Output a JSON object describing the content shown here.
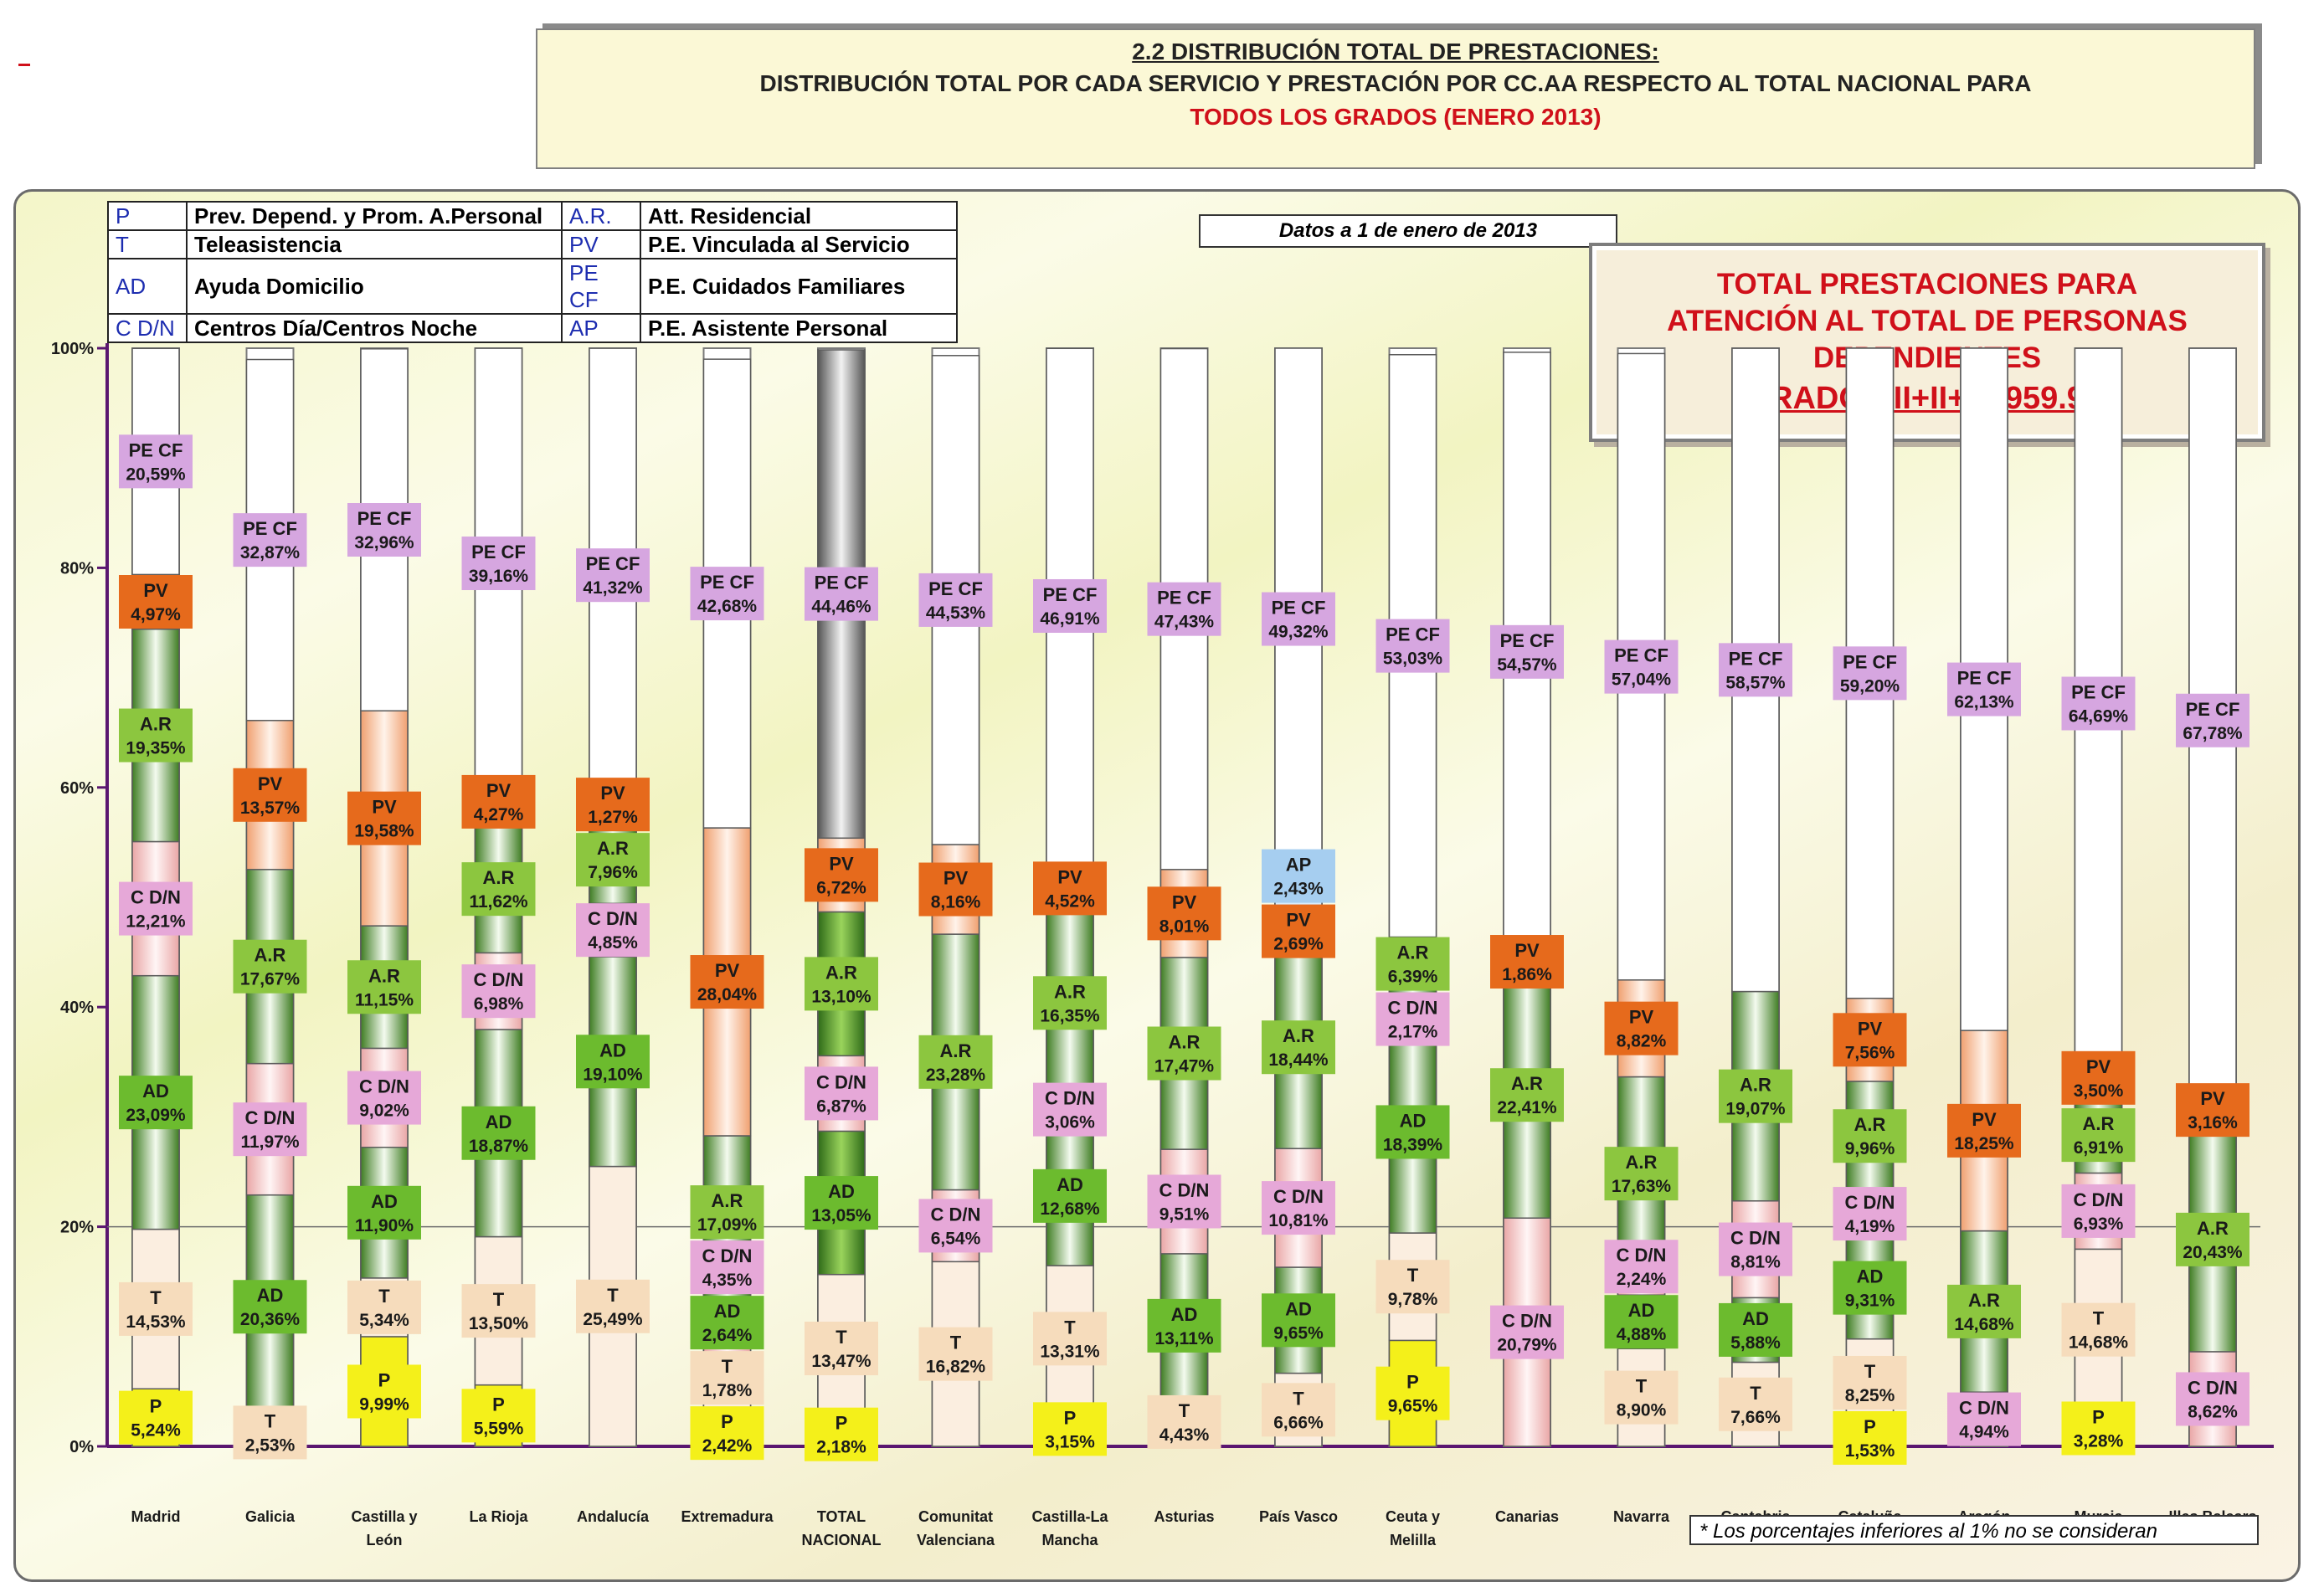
{
  "header": {
    "title": "2.2 DISTRIBUCIÓN TOTAL DE PRESTACIONES:",
    "subtitle": "DISTRIBUCIÓN TOTAL POR CADA SERVICIO Y PRESTACIÓN POR CC.AA RESPECTO AL TOTAL NACIONAL PARA",
    "subtitle2": "TODOS LOS GRADOS (ENERO 2013)"
  },
  "legend": [
    {
      "code": "P",
      "desc": "Prev. Depend. y Prom. A.Personal",
      "code2": "A.R.",
      "desc2": "Att. Residencial"
    },
    {
      "code": "T",
      "desc": "Teleasistencia",
      "code2": "PV",
      "desc2": "P.E. Vinculada al Servicio"
    },
    {
      "code": "AD",
      "desc": "Ayuda Domicilio",
      "code2": "PE CF",
      "desc2": "P.E. Cuidados Familiares"
    },
    {
      "code": "C D/N",
      "desc": "Centros Día/Centros Noche",
      "code2": "AP",
      "desc2": "P.E. Asistente Personal"
    }
  ],
  "datos_note": "Datos a 1 de enero de 2013",
  "total_box": {
    "line1": "TOTAL PRESTACIONES PARA",
    "line2": "ATENCIÓN AL TOTAL DE PERSONAS",
    "line3": "DEPENDIENTES",
    "line4": "(GRADOS II+II+I): 959.903"
  },
  "footnote": "* Los porcentajes inferiores al 1% no se consideran",
  "colors": {
    "P": "#f4f01a",
    "T": "#f6dcbc",
    "AD": "#6cbb2e",
    "C D/N": "#e6a8d8",
    "A.R": "#8cc63f",
    "PV": "#e66a1c",
    "PE CF": "#d6a6e0",
    "AP": "#a6cef0",
    "axis": "#5a1670",
    "label_text": "#1a1a1a"
  },
  "chart_data": {
    "type": "bar",
    "stacked": true,
    "ylim": [
      0,
      100
    ],
    "yticks": [
      "0%",
      "20%",
      "40%",
      "60%",
      "80%",
      "100%"
    ],
    "grid": false,
    "reference_line": 20,
    "categories": [
      {
        "label": [
          "Madrid"
        ],
        "highlight": false,
        "segments": [
          {
            "code": "P",
            "value": 5.24,
            "label": "5,24%"
          },
          {
            "code": "T",
            "value": 14.53,
            "label": "14,53%"
          },
          {
            "code": "AD",
            "value": 23.09,
            "label": "23,09%"
          },
          {
            "code": "C D/N",
            "value": 12.21,
            "label": "12,21%"
          },
          {
            "code": "A.R",
            "value": 19.35,
            "label": "19,35%"
          },
          {
            "code": "PV",
            "value": 4.97,
            "label": "4,97%"
          },
          {
            "code": "PE CF",
            "value": 20.59,
            "label": "20,59%"
          }
        ]
      },
      {
        "label": [
          "Galicia"
        ],
        "highlight": false,
        "segments": [
          {
            "code": "T",
            "value": 2.53,
            "label": "2,53%"
          },
          {
            "code": "AD",
            "value": 20.36,
            "label": "20,36%"
          },
          {
            "code": "C D/N",
            "value": 11.97,
            "label": "11,97%"
          },
          {
            "code": "A.R",
            "value": 17.67,
            "label": "17,67%"
          },
          {
            "code": "PV",
            "value": 13.57,
            "label": "13,57%"
          },
          {
            "code": "PE CF",
            "value": 32.87,
            "label": "32,87%"
          }
        ]
      },
      {
        "label": [
          "Castilla y",
          "León"
        ],
        "highlight": false,
        "segments": [
          {
            "code": "P",
            "value": 9.99,
            "label": "9,99%"
          },
          {
            "code": "T",
            "value": 5.34,
            "label": "5,34%"
          },
          {
            "code": "AD",
            "value": 11.9,
            "label": "11,90%"
          },
          {
            "code": "C D/N",
            "value": 9.02,
            "label": "9,02%"
          },
          {
            "code": "A.R",
            "value": 11.15,
            "label": "11,15%"
          },
          {
            "code": "PV",
            "value": 19.58,
            "label": "19,58%"
          },
          {
            "code": "PE CF",
            "value": 32.96,
            "label": "32,96%"
          }
        ]
      },
      {
        "label": [
          "La Rioja"
        ],
        "highlight": false,
        "segments": [
          {
            "code": "P",
            "value": 5.59,
            "label": "5,59%"
          },
          {
            "code": "T",
            "value": 13.5,
            "label": "13,50%"
          },
          {
            "code": "AD",
            "value": 18.87,
            "label": "18,87%"
          },
          {
            "code": "C D/N",
            "value": 6.98,
            "label": "6,98%"
          },
          {
            "code": "A.R",
            "value": 11.62,
            "label": "11,62%"
          },
          {
            "code": "PV",
            "value": 4.27,
            "label": "4,27%"
          },
          {
            "code": "PE CF",
            "value": 39.16,
            "label": "39,16%"
          }
        ]
      },
      {
        "label": [
          "Andalucía"
        ],
        "highlight": false,
        "segments": [
          {
            "code": "T",
            "value": 25.49,
            "label": "25,49%"
          },
          {
            "code": "AD",
            "value": 19.1,
            "label": "19,10%"
          },
          {
            "code": "C D/N",
            "value": 4.85,
            "label": "4,85%"
          },
          {
            "code": "A.R",
            "value": 7.96,
            "label": "7,96%"
          },
          {
            "code": "PV",
            "value": 1.27,
            "label": "1,27%"
          },
          {
            "code": "PE CF",
            "value": 41.32,
            "label": "41,32%"
          }
        ]
      },
      {
        "label": [
          "Extremadura"
        ],
        "highlight": false,
        "segments": [
          {
            "code": "P",
            "value": 2.42,
            "label": "2,42%"
          },
          {
            "code": "T",
            "value": 1.78,
            "label": "1,78%"
          },
          {
            "code": "AD",
            "value": 2.64,
            "label": "2,64%"
          },
          {
            "code": "C D/N",
            "value": 4.35,
            "label": "4,35%"
          },
          {
            "code": "A.R",
            "value": 17.09,
            "label": "17,09%"
          },
          {
            "code": "PV",
            "value": 28.04,
            "label": "28,04%"
          },
          {
            "code": "PE CF",
            "value": 42.68,
            "label": "42,68%"
          }
        ]
      },
      {
        "label": [
          "TOTAL",
          "NACIONAL"
        ],
        "highlight": true,
        "segments": [
          {
            "code": "P",
            "value": 2.18,
            "label": "2,18%"
          },
          {
            "code": "T",
            "value": 13.47,
            "label": "13,47%"
          },
          {
            "code": "AD",
            "value": 13.05,
            "label": "13,05%"
          },
          {
            "code": "C D/N",
            "value": 6.87,
            "label": "6,87%"
          },
          {
            "code": "A.R",
            "value": 13.1,
            "label": "13,10%"
          },
          {
            "code": "PV",
            "value": 6.72,
            "label": "6,72%"
          },
          {
            "code": "PE CF",
            "value": 44.46,
            "label": "44,46%"
          }
        ]
      },
      {
        "label": [
          "Comunitat",
          "Valenciana"
        ],
        "highlight": false,
        "segments": [
          {
            "code": "T",
            "value": 16.82,
            "label": "16,82%"
          },
          {
            "code": "C D/N",
            "value": 6.54,
            "label": "6,54%"
          },
          {
            "code": "A.R",
            "value": 23.28,
            "label": "23,28%"
          },
          {
            "code": "PV",
            "value": 8.16,
            "label": "8,16%"
          },
          {
            "code": "PE CF",
            "value": 44.53,
            "label": "44,53%"
          }
        ]
      },
      {
        "label": [
          "Castilla-La",
          "Mancha"
        ],
        "highlight": false,
        "segments": [
          {
            "code": "P",
            "value": 3.15,
            "label": "3,15%"
          },
          {
            "code": "T",
            "value": 13.31,
            "label": "13,31%"
          },
          {
            "code": "AD",
            "value": 12.68,
            "label": "12,68%"
          },
          {
            "code": "C D/N",
            "value": 3.06,
            "label": "3,06%"
          },
          {
            "code": "A.R",
            "value": 16.35,
            "label": "16,35%"
          },
          {
            "code": "PV",
            "value": 4.52,
            "label": "4,52%"
          },
          {
            "code": "PE CF",
            "value": 46.91,
            "label": "46,91%"
          }
        ]
      },
      {
        "label": [
          "Asturias"
        ],
        "highlight": false,
        "segments": [
          {
            "code": "T",
            "value": 4.43,
            "label": "4,43%"
          },
          {
            "code": "AD",
            "value": 13.11,
            "label": "13,11%"
          },
          {
            "code": "C D/N",
            "value": 9.51,
            "label": "9,51%"
          },
          {
            "code": "A.R",
            "value": 17.47,
            "label": "17,47%"
          },
          {
            "code": "PV",
            "value": 8.01,
            "label": "8,01%"
          },
          {
            "code": "PE CF",
            "value": 47.43,
            "label": "47,43%"
          }
        ]
      },
      {
        "label": [
          "País Vasco"
        ],
        "highlight": false,
        "segments": [
          {
            "code": "T",
            "value": 6.66,
            "label": "6,66%"
          },
          {
            "code": "AD",
            "value": 9.65,
            "label": "9,65%"
          },
          {
            "code": "C D/N",
            "value": 10.81,
            "label": "10,81%"
          },
          {
            "code": "A.R",
            "value": 18.44,
            "label": "18,44%"
          },
          {
            "code": "PV",
            "value": 2.69,
            "label": "2,69%"
          },
          {
            "code": "AP",
            "value": 2.43,
            "label": "2,43%"
          },
          {
            "code": "PE CF",
            "value": 49.32,
            "label": "49,32%"
          }
        ]
      },
      {
        "label": [
          "Ceuta y",
          "Melilla"
        ],
        "highlight": false,
        "segments": [
          {
            "code": "P",
            "value": 9.65,
            "label": "9,65%"
          },
          {
            "code": "T",
            "value": 9.78,
            "label": "9,78%"
          },
          {
            "code": "AD",
            "value": 18.39,
            "label": "18,39%"
          },
          {
            "code": "C D/N",
            "value": 2.17,
            "label": "2,17%"
          },
          {
            "code": "A.R",
            "value": 6.39,
            "label": "6,39%"
          },
          {
            "code": "PE CF",
            "value": 53.03,
            "label": "53,03%"
          }
        ]
      },
      {
        "label": [
          "Canarias"
        ],
        "highlight": false,
        "segments": [
          {
            "code": "C D/N",
            "value": 20.79,
            "label": "20,79%"
          },
          {
            "code": "A.R",
            "value": 22.41,
            "label": "22,41%"
          },
          {
            "code": "PV",
            "value": 1.86,
            "label": "1,86%"
          },
          {
            "code": "PE CF",
            "value": 54.57,
            "label": "54,57%"
          }
        ]
      },
      {
        "label": [
          "Navarra"
        ],
        "highlight": false,
        "segments": [
          {
            "code": "T",
            "value": 8.9,
            "label": "8,90%"
          },
          {
            "code": "AD",
            "value": 4.88,
            "label": "4,88%"
          },
          {
            "code": "C D/N",
            "value": 2.24,
            "label": "2,24%"
          },
          {
            "code": "A.R",
            "value": 17.63,
            "label": "17,63%"
          },
          {
            "code": "PV",
            "value": 8.82,
            "label": "8,82%"
          },
          {
            "code": "PE CF",
            "value": 57.04,
            "label": "57,04%"
          }
        ]
      },
      {
        "label": [
          "Cantabria"
        ],
        "highlight": false,
        "segments": [
          {
            "code": "T",
            "value": 7.66,
            "label": "7,66%"
          },
          {
            "code": "AD",
            "value": 5.88,
            "label": "5,88%"
          },
          {
            "code": "C D/N",
            "value": 8.81,
            "label": "8,81%"
          },
          {
            "code": "A.R",
            "value": 19.07,
            "label": "19,07%"
          },
          {
            "code": "PE CF",
            "value": 58.57,
            "label": "58,57%"
          }
        ]
      },
      {
        "label": [
          "Cataluña"
        ],
        "highlight": false,
        "segments": [
          {
            "code": "P",
            "value": 1.53,
            "label": "1,53%"
          },
          {
            "code": "T",
            "value": 8.25,
            "label": "8,25%"
          },
          {
            "code": "AD",
            "value": 9.31,
            "label": "9,31%"
          },
          {
            "code": "C D/N",
            "value": 4.19,
            "label": "4,19%"
          },
          {
            "code": "A.R",
            "value": 9.96,
            "label": "9,96%"
          },
          {
            "code": "PV",
            "value": 7.56,
            "label": "7,56%"
          },
          {
            "code": "PE CF",
            "value": 59.2,
            "label": "59,20%"
          }
        ]
      },
      {
        "label": [
          "Aragón"
        ],
        "highlight": false,
        "segments": [
          {
            "code": "C D/N",
            "value": 4.94,
            "label": "4,94%"
          },
          {
            "code": "A.R",
            "value": 14.68,
            "label": "14,68%"
          },
          {
            "code": "PV",
            "value": 18.25,
            "label": "18,25%"
          },
          {
            "code": "PE CF",
            "value": 62.13,
            "label": "62,13%"
          }
        ]
      },
      {
        "label": [
          "Murcia"
        ],
        "highlight": false,
        "segments": [
          {
            "code": "P",
            "value": 3.28,
            "label": "3,28%"
          },
          {
            "code": "T",
            "value": 14.68,
            "label": "14,68%"
          },
          {
            "code": "C D/N",
            "value": 6.93,
            "label": "6,93%"
          },
          {
            "code": "A.R",
            "value": 6.91,
            "label": "6,91%"
          },
          {
            "code": "PV",
            "value": 3.5,
            "label": "3,50%"
          },
          {
            "code": "PE CF",
            "value": 64.69,
            "label": "64,69%"
          }
        ]
      },
      {
        "label": [
          "Illes Balears"
        ],
        "highlight": false,
        "segments": [
          {
            "code": "C D/N",
            "value": 8.62,
            "label": "8,62%"
          },
          {
            "code": "A.R",
            "value": 20.43,
            "label": "20,43%"
          },
          {
            "code": "PV",
            "value": 3.16,
            "label": "3,16%"
          },
          {
            "code": "PE CF",
            "value": 67.78,
            "label": "67,78%"
          }
        ]
      }
    ]
  }
}
